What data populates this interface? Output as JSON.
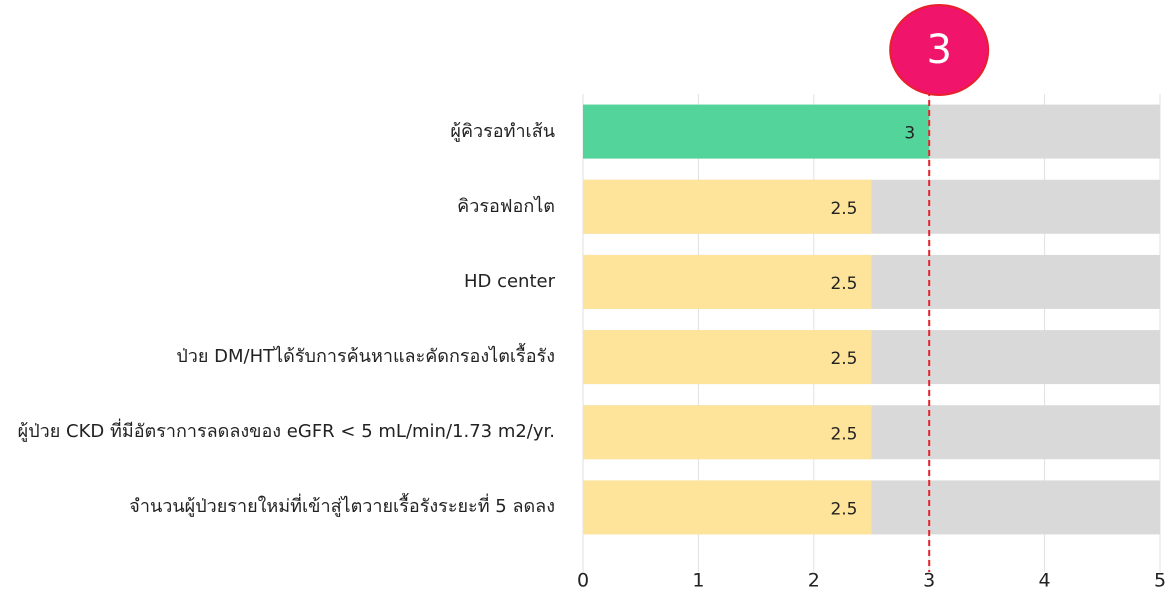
{
  "chart_data": {
    "type": "bar",
    "orientation": "horizontal",
    "categories": [
      "ผู้คิวรอทำเส้น",
      "คิวรอฟอกไต",
      "HD center",
      "ป่วย DM/HTได้รับการค้นหาและคัดกรองไตเรื้อรัง",
      "ผู้ป่วย CKD ที่มีอัตราการลดลงของ eGFR < 5 mL/min/1.73 m2/yr.",
      "จำนวนผู้ป่วยรายใหม่ที่เข้าสู่ไตวายเรื้อรังระยะที่ 5 ลดลง"
    ],
    "values": [
      3,
      2.5,
      2.5,
      2.5,
      2.5,
      2.5
    ],
    "colors": [
      "#52d49a",
      "#fde49a",
      "#fde49a",
      "#fde49a",
      "#fde49a",
      "#fde49a"
    ],
    "track_color": "#d9d9d9",
    "target": 3,
    "target_color": "#e8202a",
    "xlim": [
      0,
      5
    ],
    "xticks": [
      0,
      1,
      2,
      3,
      4,
      5
    ],
    "grid": true
  }
}
